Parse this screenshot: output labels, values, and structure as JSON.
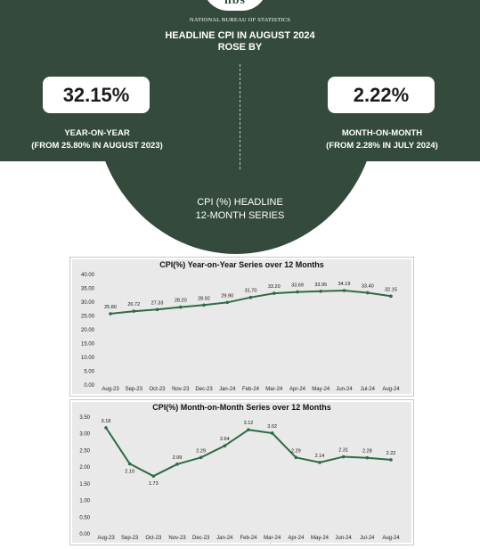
{
  "header": {
    "agency": "NATIONAL BUREAU OF STATISTICS",
    "logo_text": "nbs",
    "headline_line1": "HEADLINE CPI IN AUGUST 2024",
    "headline_line2": "ROSE BY",
    "series_line1": "CPI (%)  HEADLINE",
    "series_line2": "12-MONTH SERIES"
  },
  "stats": {
    "yoy": {
      "value": "32.15%",
      "label": "YEAR-ON-YEAR",
      "sub": "(FROM 25.80% IN AUGUST 2023)"
    },
    "mom": {
      "value": "2.22%",
      "label": "MONTH-ON-MONTH",
      "sub": "(FROM 2.28% IN JULY 2024)"
    }
  },
  "colors": {
    "primary": "#344a3c",
    "line": "#2e6b45",
    "panel_bg": "#e9e9e9"
  },
  "chart_data": [
    {
      "type": "line",
      "title": "CPI(%) Year-on-Year Series over 12 Months",
      "categories": [
        "Aug-23",
        "Sep-23",
        "Oct-23",
        "Nov-23",
        "Dec-23",
        "Jan-24",
        "Feb-24",
        "Mar-24",
        "Apr-24",
        "May-24",
        "Jun-24",
        "Jul-24",
        "Aug-24"
      ],
      "values": [
        25.8,
        26.72,
        27.33,
        28.2,
        28.92,
        29.9,
        31.7,
        33.2,
        33.69,
        33.95,
        34.19,
        33.4,
        32.15
      ],
      "data_labels": [
        "25.80",
        "26.72",
        "27.33",
        "28.20",
        "28.92",
        "29.90",
        "31.70",
        "33.20",
        "33.69",
        "33.95",
        "34.19",
        "33.40",
        "32.15"
      ],
      "yticks": [
        "40.00",
        "35.00",
        "30.00",
        "25.00",
        "20.00",
        "15.00",
        "10.00",
        "5.00",
        "0.00"
      ],
      "ylim": [
        0,
        40
      ],
      "grid": false
    },
    {
      "type": "line",
      "title": "CPI(%) Month-on-Month Series over 12 Months",
      "categories": [
        "Aug-23",
        "Sep-23",
        "Oct-23",
        "Nov-23",
        "Dec-23",
        "Jan-24",
        "Feb-24",
        "Mar-24",
        "Apr-24",
        "May-24",
        "Jun-24",
        "Jul-24",
        "Aug-24"
      ],
      "values": [
        3.18,
        2.1,
        1.73,
        2.09,
        2.29,
        2.64,
        3.12,
        3.02,
        2.29,
        2.14,
        2.31,
        2.28,
        2.22
      ],
      "data_labels": [
        "3.18",
        "2.10",
        "1.73",
        "2.09",
        "2.29",
        "2.64",
        "3.12",
        "3.02",
        "2.29",
        "2.14",
        "2.31",
        "2.28",
        "2.22"
      ],
      "yticks": [
        "3.50",
        "3.00",
        "2.50",
        "2.00",
        "1.50",
        "1.00",
        "0.50",
        "0.00"
      ],
      "ylim": [
        0,
        3.5
      ],
      "grid": false
    }
  ]
}
